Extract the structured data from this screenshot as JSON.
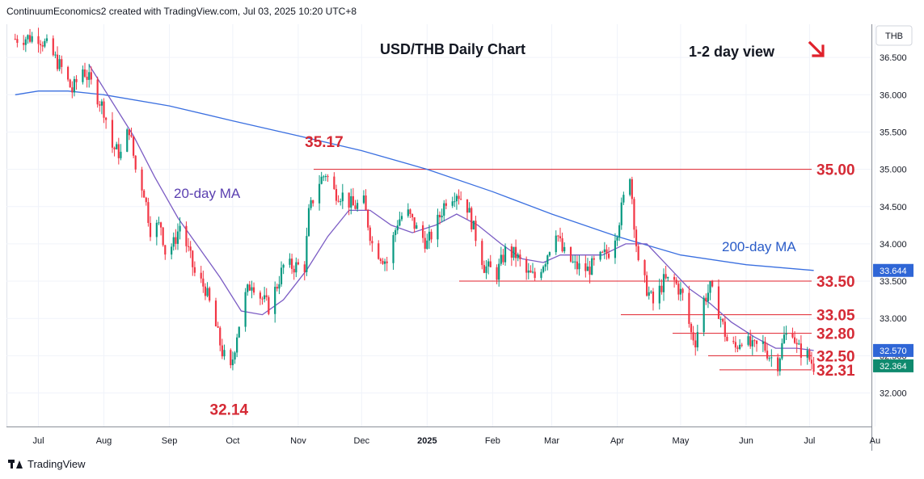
{
  "header": {
    "credit": "ContinuumEconomics2 created with TradingView.com, Jul 03, 2025 10:20 UTC+8"
  },
  "footer": {
    "brand": "TradingView"
  },
  "colors": {
    "up": "#089981",
    "down": "#f23645",
    "ma20": "#7b5cc4",
    "ma200": "#3a6fe0",
    "level": "#e0212b",
    "annot": "#d52a35",
    "last_bg": "#131722",
    "ma20_bg": "#2f66d6",
    "ma200_bg": "#2f66d6"
  },
  "chart_data": {
    "type": "candlestick",
    "title": "USD/THB Daily Chart",
    "subtitle": "1-2 day view",
    "view_icon": "arrow-down-right-icon",
    "currency": "THB",
    "ylim": [
      31.6,
      37.0
    ],
    "yticks": [
      "36.500",
      "36.000",
      "35.500",
      "35.000",
      "34.500",
      "34.000",
      "33.500",
      "33.000",
      "32.500",
      "32.000"
    ],
    "yticks_values": [
      36.5,
      36.0,
      35.5,
      35.0,
      34.5,
      34.0,
      33.5,
      33.0,
      32.5,
      32.0
    ],
    "xticks": [
      "Jul",
      "Aug",
      "Sep",
      "Oct",
      "Nov",
      "Dec",
      "2025",
      "Feb",
      "Mar",
      "Apr",
      "May",
      "Jun",
      "Jul",
      "Au"
    ],
    "ma_labels": {
      "ma20": "20-day MA",
      "ma200": "200-day MA"
    },
    "price_badges": [
      {
        "text": "33.644",
        "type": "ma200"
      },
      {
        "text": "32.570",
        "type": "ma20"
      },
      {
        "text": "32.364",
        "type": "last"
      }
    ],
    "levels": [
      {
        "label": "35.00",
        "value": 35.0
      },
      {
        "label": "33.50",
        "value": 33.5
      },
      {
        "label": "33.05",
        "value": 33.05
      },
      {
        "label": "32.80",
        "value": 32.8
      },
      {
        "label": "32.50",
        "value": 32.5
      },
      {
        "label": "32.31",
        "value": 32.31
      }
    ],
    "annotations": [
      {
        "label": "35.17",
        "value": 35.17,
        "date": "2024-11-14"
      },
      {
        "label": "32.14",
        "value": 32.14,
        "date": "2024-09-30"
      }
    ],
    "close_path": [
      [
        "2024-06-20",
        36.75
      ],
      [
        "2024-07-01",
        36.78
      ],
      [
        "2024-07-05",
        36.65
      ],
      [
        "2024-07-12",
        36.35
      ],
      [
        "2024-07-17",
        36.05
      ],
      [
        "2024-07-22",
        36.35
      ],
      [
        "2024-07-26",
        36.15
      ],
      [
        "2024-08-01",
        35.8
      ],
      [
        "2024-08-05",
        35.3
      ],
      [
        "2024-08-09",
        35.2
      ],
      [
        "2024-08-13",
        35.55
      ],
      [
        "2024-08-16",
        35.0
      ],
      [
        "2024-08-20",
        34.7
      ],
      [
        "2024-08-23",
        34.2
      ],
      [
        "2024-08-28",
        34.25
      ],
      [
        "2024-08-30",
        33.9
      ],
      [
        "2024-09-03",
        34.0
      ],
      [
        "2024-09-06",
        34.25
      ],
      [
        "2024-09-10",
        33.9
      ],
      [
        "2024-09-13",
        33.6
      ],
      [
        "2024-09-18",
        33.4
      ],
      [
        "2024-09-22",
        33.0
      ],
      [
        "2024-09-26",
        32.55
      ],
      [
        "2024-09-30",
        32.3
      ],
      [
        "2024-10-03",
        32.8
      ],
      [
        "2024-10-07",
        33.3
      ],
      [
        "2024-10-10",
        33.5
      ],
      [
        "2024-10-14",
        33.3
      ],
      [
        "2024-10-18",
        33.15
      ],
      [
        "2024-10-22",
        33.45
      ],
      [
        "2024-10-25",
        33.7
      ],
      [
        "2024-10-30",
        33.7
      ],
      [
        "2024-11-04",
        33.7
      ],
      [
        "2024-11-06",
        34.4
      ],
      [
        "2024-11-10",
        34.8
      ],
      [
        "2024-11-14",
        34.95
      ],
      [
        "2024-11-18",
        34.7
      ],
      [
        "2024-11-22",
        34.65
      ],
      [
        "2024-11-27",
        34.5
      ],
      [
        "2024-12-02",
        34.55
      ],
      [
        "2024-12-06",
        34.0
      ],
      [
        "2024-12-10",
        33.85
      ],
      [
        "2024-12-13",
        33.75
      ],
      [
        "2024-12-18",
        34.3
      ],
      [
        "2024-12-22",
        34.45
      ],
      [
        "2024-12-27",
        34.2
      ],
      [
        "2025-01-01",
        34.0
      ],
      [
        "2025-01-06",
        34.3
      ],
      [
        "2025-01-10",
        34.6
      ],
      [
        "2025-01-15",
        34.7
      ],
      [
        "2025-01-20",
        34.5
      ],
      [
        "2025-01-24",
        34.1
      ],
      [
        "2025-01-28",
        33.7
      ],
      [
        "2025-02-03",
        33.6
      ],
      [
        "2025-02-07",
        33.9
      ],
      [
        "2025-02-12",
        33.85
      ],
      [
        "2025-02-17",
        33.6
      ],
      [
        "2025-02-21",
        33.55
      ],
      [
        "2025-02-26",
        33.8
      ],
      [
        "2025-03-03",
        34.2
      ],
      [
        "2025-03-06",
        33.9
      ],
      [
        "2025-03-12",
        33.7
      ],
      [
        "2025-03-18",
        33.65
      ],
      [
        "2025-03-24",
        33.8
      ],
      [
        "2025-03-28",
        33.9
      ],
      [
        "2025-04-01",
        34.2
      ],
      [
        "2025-04-04",
        34.6
      ],
      [
        "2025-04-07",
        34.95
      ],
      [
        "2025-04-09",
        34.3
      ],
      [
        "2025-04-11",
        33.7
      ],
      [
        "2025-04-15",
        33.4
      ],
      [
        "2025-04-18",
        33.2
      ],
      [
        "2025-04-23",
        33.5
      ],
      [
        "2025-04-28",
        33.5
      ],
      [
        "2025-05-02",
        33.3
      ],
      [
        "2025-05-06",
        32.8
      ],
      [
        "2025-05-08",
        32.7
      ],
      [
        "2025-05-12",
        33.25
      ],
      [
        "2025-05-15",
        33.4
      ],
      [
        "2025-05-19",
        33.1
      ],
      [
        "2025-05-23",
        32.7
      ],
      [
        "2025-05-27",
        32.6
      ],
      [
        "2025-05-30",
        32.75
      ],
      [
        "2025-06-04",
        32.6
      ],
      [
        "2025-06-09",
        32.65
      ],
      [
        "2025-06-12",
        32.5
      ],
      [
        "2025-06-16",
        32.4
      ],
      [
        "2025-06-19",
        32.75
      ],
      [
        "2025-06-23",
        32.85
      ],
      [
        "2025-06-25",
        32.6
      ],
      [
        "2025-06-30",
        32.5
      ],
      [
        "2025-07-03",
        32.364
      ]
    ],
    "ma20_path": [
      [
        "2024-07-25",
        36.4
      ],
      [
        "2024-08-05",
        35.9
      ],
      [
        "2024-08-15",
        35.45
      ],
      [
        "2024-08-25",
        34.9
      ],
      [
        "2024-09-05",
        34.35
      ],
      [
        "2024-09-15",
        33.95
      ],
      [
        "2024-09-25",
        33.55
      ],
      [
        "2024-10-05",
        33.1
      ],
      [
        "2024-10-15",
        33.05
      ],
      [
        "2024-10-25",
        33.25
      ],
      [
        "2024-11-05",
        33.65
      ],
      [
        "2024-11-15",
        34.1
      ],
      [
        "2024-11-25",
        34.45
      ],
      [
        "2024-12-05",
        34.45
      ],
      [
        "2024-12-15",
        34.25
      ],
      [
        "2024-12-25",
        34.15
      ],
      [
        "2025-01-05",
        34.25
      ],
      [
        "2025-01-15",
        34.4
      ],
      [
        "2025-01-25",
        34.25
      ],
      [
        "2025-02-05",
        34.0
      ],
      [
        "2025-02-15",
        33.8
      ],
      [
        "2025-02-25",
        33.75
      ],
      [
        "2025-03-05",
        33.85
      ],
      [
        "2025-03-15",
        33.85
      ],
      [
        "2025-03-25",
        33.85
      ],
      [
        "2025-04-05",
        34.0
      ],
      [
        "2025-04-15",
        34.0
      ],
      [
        "2025-04-25",
        33.7
      ],
      [
        "2025-05-05",
        33.4
      ],
      [
        "2025-05-15",
        33.2
      ],
      [
        "2025-05-25",
        32.95
      ],
      [
        "2025-06-05",
        32.75
      ],
      [
        "2025-06-15",
        32.6
      ],
      [
        "2025-06-25",
        32.6
      ],
      [
        "2025-07-03",
        32.57
      ]
    ],
    "ma200_path": [
      [
        "2024-06-20",
        36.0
      ],
      [
        "2024-07-01",
        36.05
      ],
      [
        "2024-07-15",
        36.05
      ],
      [
        "2024-08-01",
        36.0
      ],
      [
        "2024-09-01",
        35.85
      ],
      [
        "2024-10-01",
        35.65
      ],
      [
        "2024-11-01",
        35.45
      ],
      [
        "2024-12-01",
        35.25
      ],
      [
        "2025-01-01",
        35.0
      ],
      [
        "2025-02-01",
        34.7
      ],
      [
        "2025-03-01",
        34.4
      ],
      [
        "2025-04-01",
        34.1
      ],
      [
        "2025-05-01",
        33.85
      ],
      [
        "2025-06-01",
        33.72
      ],
      [
        "2025-07-03",
        33.644
      ]
    ]
  }
}
